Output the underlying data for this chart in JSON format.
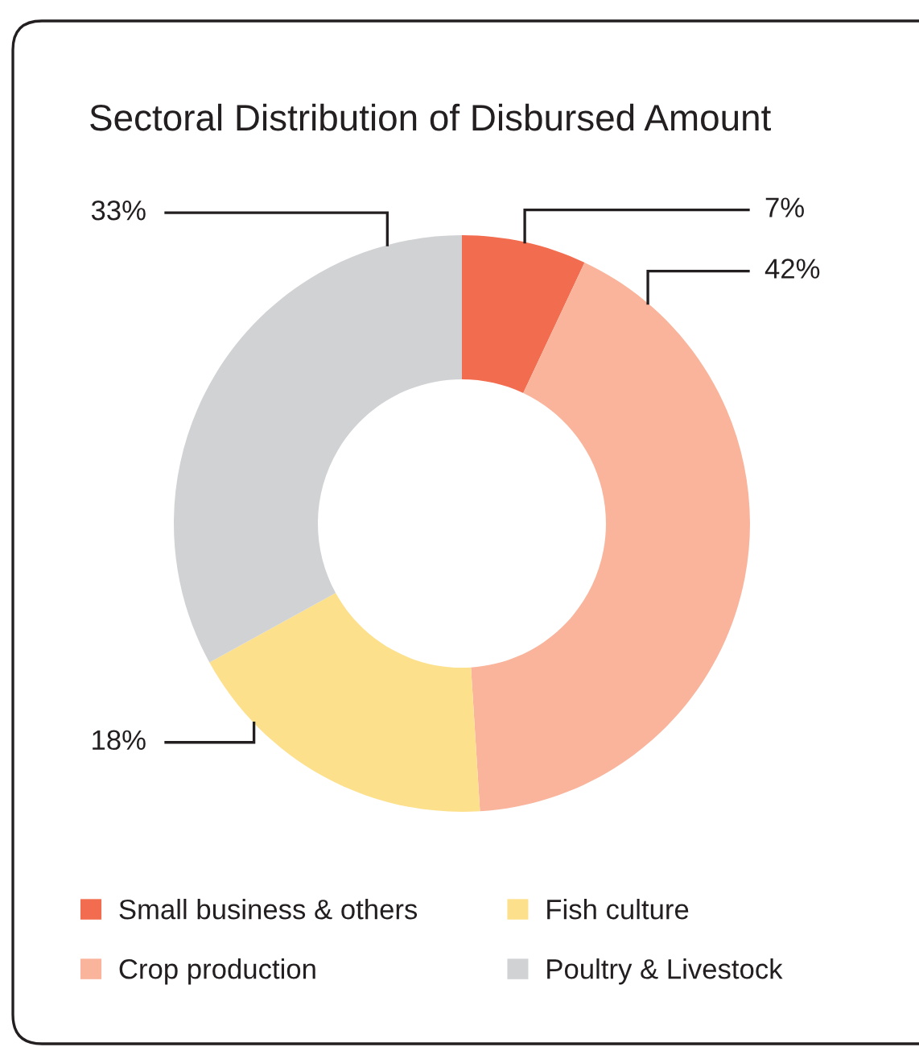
{
  "chart_data": {
    "type": "donut",
    "title": "Sectoral Distribution of Disbursed Amount",
    "categories": [
      "Small business & others",
      "Crop production",
      "Fish culture",
      "Poultry & Livestock"
    ],
    "values": [
      7,
      42,
      18,
      33
    ],
    "colors": [
      "#f26c4f",
      "#f9b49b",
      "#fde08c",
      "#d1d2d4"
    ],
    "value_labels": [
      "7%",
      "42%",
      "18%",
      "33%"
    ],
    "legend": "bottom"
  }
}
